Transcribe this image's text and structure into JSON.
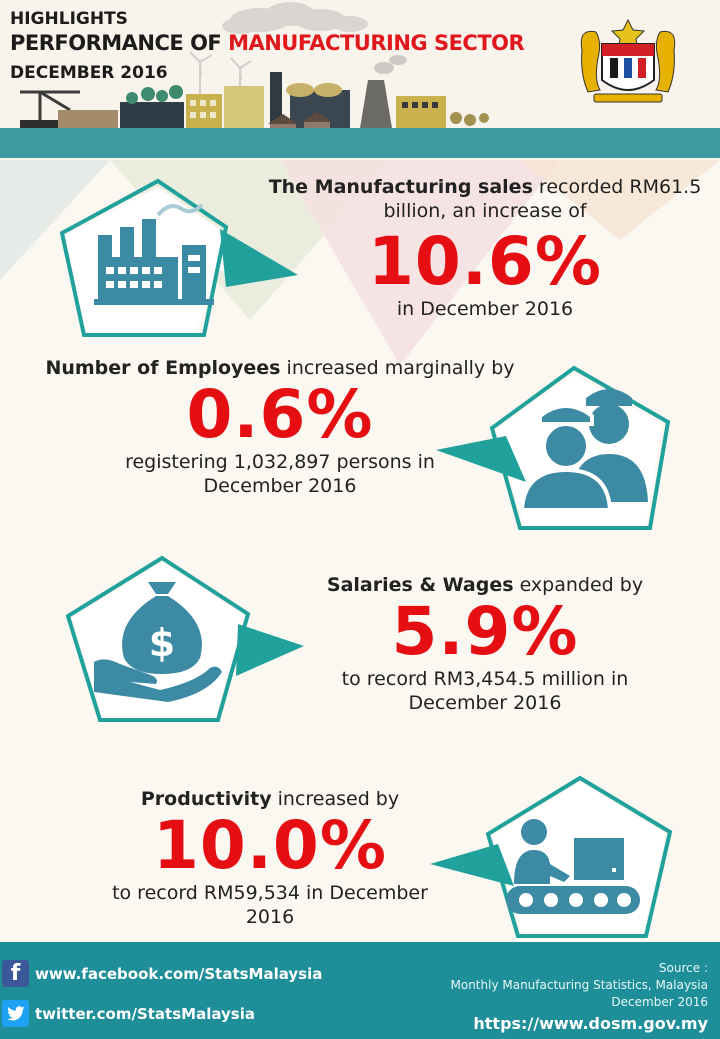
{
  "header": {
    "line1": "HIGHLIGHTS",
    "line2_prefix": "PERFORMANCE OF ",
    "line2_highlight": "MANUFACTURING SECTOR",
    "line3": "DECEMBER 2016"
  },
  "sections": {
    "sales": {
      "lead_bold": "The Manufacturing sales",
      "lead_rest": " recorded RM61.5",
      "line2": "billion, an increase of",
      "figure": "10.6%",
      "tail": "in December 2016"
    },
    "employees": {
      "lead_bold": "Number of Employees",
      "lead_rest": " increased marginally by",
      "figure": "0.6%",
      "tail1": "registering 1,032,897 persons in",
      "tail2": "December 2016"
    },
    "salaries": {
      "lead_bold": "Salaries & Wages",
      "lead_rest": " expanded by",
      "figure": "5.9%",
      "tail1": "to record RM3,454.5 million in",
      "tail2": "December 2016"
    },
    "productivity": {
      "lead_bold": "Productivity",
      "lead_rest": " increased by",
      "figure": "10.0%",
      "tail1": "to record RM59,534 in December",
      "tail2": "2016"
    }
  },
  "footer": {
    "facebook": "www.facebook.com/StatsMalaysia",
    "twitter": "twitter.com/StatsMalaysia",
    "source_label": "Source :",
    "source_name": "Monthly Manufacturing Statistics, Malaysia",
    "source_period": "December 2016",
    "url": "https://www.dosm.gov.my"
  },
  "colors": {
    "accent_red": "#e40e13",
    "teal": "#3f9aa2",
    "footer_teal": "#1e8f99",
    "icon_blue": "#3c8aa3"
  },
  "icons": [
    "factory-icon",
    "workers-icon",
    "money-bag-hand-icon",
    "worker-conveyor-icon",
    "facebook-icon",
    "twitter-icon",
    "coat-of-arms-icon"
  ]
}
